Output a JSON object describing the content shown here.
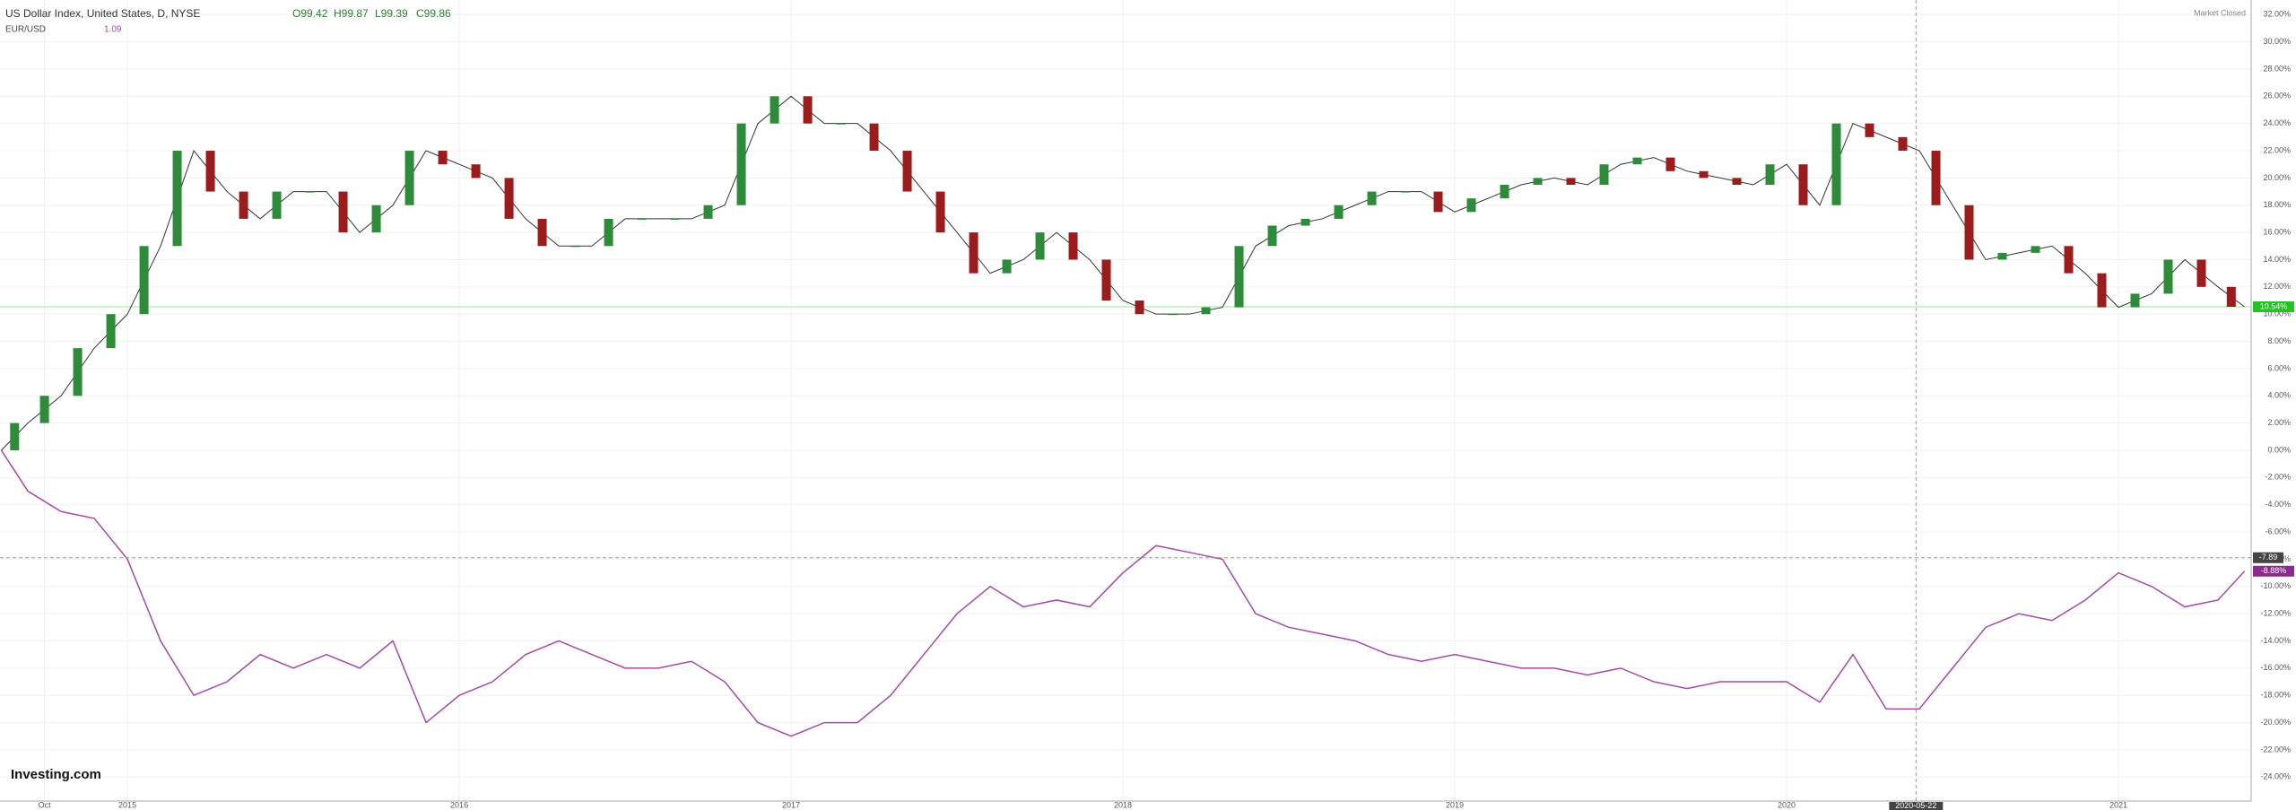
{
  "chart_data": {
    "type": "candle-line",
    "title": "US Dollar Index, United States, D, NYSE",
    "ohlc": {
      "open": "O99.42",
      "high": "H99.87",
      "low": "L99.39",
      "close": "C99.86"
    },
    "status": "Market Closed",
    "brand": "Investing.com",
    "x": [
      2014.62,
      2014.7,
      2014.8,
      2014.9,
      2015.0,
      2015.1,
      2015.2,
      2015.3,
      2015.4,
      2015.5,
      2015.6,
      2015.7,
      2015.8,
      2015.9,
      2016.0,
      2016.1,
      2016.2,
      2016.3,
      2016.4,
      2016.5,
      2016.6,
      2016.7,
      2016.8,
      2016.9,
      2017.0,
      2017.1,
      2017.2,
      2017.3,
      2017.4,
      2017.5,
      2017.6,
      2017.7,
      2017.8,
      2017.9,
      2018.0,
      2018.1,
      2018.2,
      2018.3,
      2018.4,
      2018.5,
      2018.6,
      2018.7,
      2018.8,
      2018.9,
      2019.0,
      2019.1,
      2019.2,
      2019.3,
      2019.4,
      2019.5,
      2019.6,
      2019.7,
      2019.8,
      2019.9,
      2020.0,
      2020.1,
      2020.2,
      2020.3,
      2020.4,
      2020.5,
      2020.6,
      2020.7,
      2020.8,
      2020.9,
      2021.0,
      2021.1,
      2021.2,
      2021.3,
      2021.38
    ],
    "series": [
      {
        "name": "US Dollar Index",
        "up_color": "#2e8b3a",
        "down_color": "#9b1c1c",
        "color": "#333333",
        "last_label": "10.54%",
        "tag_color": "#22c322",
        "values": [
          0,
          2,
          4,
          7.5,
          10,
          15,
          22,
          19,
          17,
          19,
          19,
          16,
          18,
          22,
          21,
          20,
          17,
          15,
          15,
          17,
          17,
          17,
          18,
          24,
          26,
          24,
          24,
          22,
          19,
          16,
          13,
          14,
          16,
          14,
          11,
          10,
          10,
          10.5,
          15,
          16.5,
          17,
          18,
          19,
          19,
          17.5,
          18.5,
          19.5,
          20,
          19.5,
          21,
          21.5,
          20.5,
          20,
          19.5,
          21,
          18,
          24,
          23,
          22,
          18,
          14,
          14.5,
          15,
          13,
          10.5,
          11.5,
          14,
          12,
          10.54
        ]
      },
      {
        "name": "EUR/USD",
        "value": "1.09",
        "color": "#a54aa5",
        "last_label": "-8.88%",
        "tag_color": "#8b2a8b",
        "values": [
          0,
          -3,
          -4.5,
          -5,
          -8,
          -14,
          -18,
          -17,
          -15,
          -16,
          -15,
          -16,
          -14,
          -20,
          -18,
          -17,
          -15,
          -14,
          -15,
          -16,
          -16,
          -15.5,
          -17,
          -20,
          -21,
          -20,
          -20,
          -18,
          -15,
          -12,
          -10,
          -11.5,
          -11,
          -11.5,
          -9,
          -7,
          -7.5,
          -8,
          -12,
          -13,
          -13.5,
          -14,
          -15,
          -15.5,
          -15,
          -15.5,
          -16,
          -16,
          -16.5,
          -16,
          -17,
          -17.5,
          -17,
          -17,
          -17,
          -18.5,
          -15,
          -19,
          -19,
          -16,
          -13,
          -12,
          -12.5,
          -11,
          -9,
          -10,
          -11.5,
          -11,
          -8.88
        ]
      }
    ],
    "crosshair": {
      "x": {
        "value": 2020.39,
        "label": "2020-05-22"
      },
      "y": {
        "value": -7.89,
        "label": "-7.89"
      }
    },
    "xlim": [
      2014.616,
      2021.4
    ],
    "xticks": [
      {
        "value": 2014.75,
        "label": "Oct"
      },
      2015,
      2016,
      2017,
      2018,
      2019,
      2020,
      2021
    ],
    "ylim": [
      -25.76,
      33.07
    ],
    "yticks": [
      {
        "value": 32,
        "label": "32.00%"
      },
      {
        "value": 30,
        "label": "30.00%"
      },
      {
        "value": 28,
        "label": "28.00%"
      },
      {
        "value": 26,
        "label": "26.00%"
      },
      {
        "value": 24,
        "label": "24.00%"
      },
      {
        "value": 22,
        "label": "22.00%"
      },
      {
        "value": 20,
        "label": "20.00%"
      },
      {
        "value": 18,
        "label": "18.00%"
      },
      {
        "value": 16,
        "label": "16.00%"
      },
      {
        "value": 14,
        "label": "14.00%"
      },
      {
        "value": 12,
        "label": "12.00%"
      },
      {
        "value": 10,
        "label": "10.00%"
      },
      {
        "value": 8,
        "label": "8.00%"
      },
      {
        "value": 6,
        "label": "6.00%"
      },
      {
        "value": 4,
        "label": "4.00%"
      },
      {
        "value": 2,
        "label": "2.00%"
      },
      {
        "value": 0,
        "label": "0.00%"
      },
      {
        "value": -2,
        "label": "-2.00%"
      },
      {
        "value": -4,
        "label": "-4.00%"
      },
      {
        "value": -6,
        "label": "-6.00%"
      },
      {
        "value": -8,
        "label": "-8.00%"
      },
      {
        "value": -10,
        "label": "-10.00%"
      },
      {
        "value": -12,
        "label": "-12.00%"
      },
      {
        "value": -14,
        "label": "-14.00%"
      },
      {
        "value": -16,
        "label": "-16.00%"
      },
      {
        "value": -18,
        "label": "-18.00%"
      },
      {
        "value": -20,
        "label": "-20.00%"
      },
      {
        "value": -22,
        "label": "-22.00%"
      },
      {
        "value": -24,
        "label": "-24.00%"
      }
    ],
    "grid": true
  }
}
